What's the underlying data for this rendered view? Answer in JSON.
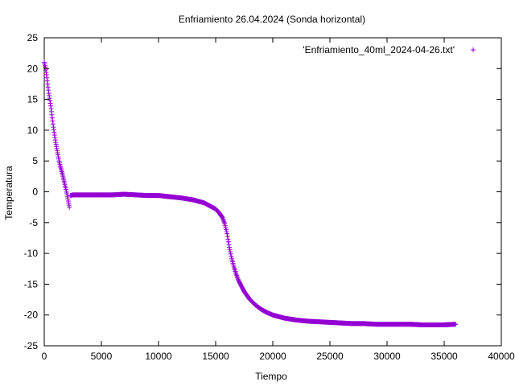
{
  "chart_data": {
    "type": "scatter",
    "title": "Enfriamiento 26.04.2024 (Sonda horizontal)",
    "xlabel": "Tiempo",
    "ylabel": "Temperatura",
    "xlim": [
      0,
      40000
    ],
    "ylim": [
      -25,
      25
    ],
    "x_ticks": [
      0,
      5000,
      10000,
      15000,
      20000,
      25000,
      30000,
      35000,
      40000
    ],
    "y_ticks": [
      25,
      20,
      15,
      10,
      5,
      0,
      -5,
      -10,
      -15,
      -20,
      -25
    ],
    "x_tick_labels": [
      "0",
      "5000",
      "10000",
      "15000",
      "20000",
      "25000",
      "30000",
      "35000",
      "40000"
    ],
    "y_tick_labels": [
      "25",
      "20",
      "15",
      "10",
      "5",
      "0",
      "-5",
      "-10",
      "-15",
      "-20",
      "-25"
    ],
    "grid": false,
    "legend_position": "top-right",
    "marker": "+",
    "series": [
      {
        "name": "'Enfriamiento_40ml_2024-04-26.txt'",
        "color": "#9400d3",
        "x": [
          0,
          100,
          200,
          300,
          400,
          500,
          600,
          700,
          800,
          900,
          1000,
          1100,
          1200,
          1300,
          1400,
          1500,
          1600,
          1700,
          1800,
          1900,
          2000,
          2100,
          2200,
          2300,
          2500,
          3000,
          4000,
          5000,
          6000,
          7000,
          8000,
          9000,
          10000,
          11000,
          12000,
          13000,
          14000,
          14500,
          15000,
          15300,
          15600,
          15800,
          16000,
          16200,
          16400,
          16600,
          16800,
          17000,
          17500,
          18000,
          18500,
          19000,
          19500,
          20000,
          21000,
          22000,
          23000,
          24000,
          25000,
          26000,
          27000,
          28000,
          29000,
          30000,
          31000,
          32000,
          33000,
          34000,
          35000,
          36000
        ],
        "y": [
          21.0,
          20.2,
          19.0,
          17.5,
          16.0,
          14.8,
          13.5,
          12.0,
          10.5,
          9.2,
          8.0,
          7.0,
          6.0,
          5.0,
          4.2,
          3.5,
          2.8,
          2.0,
          1.2,
          0.4,
          -0.5,
          -1.5,
          -2.5,
          -0.6,
          -0.5,
          -0.5,
          -0.5,
          -0.5,
          -0.5,
          -0.4,
          -0.5,
          -0.6,
          -0.6,
          -0.8,
          -1.0,
          -1.3,
          -1.8,
          -2.3,
          -2.8,
          -3.4,
          -4.2,
          -5.2,
          -6.8,
          -9.0,
          -10.8,
          -12.2,
          -13.4,
          -14.4,
          -16.2,
          -17.5,
          -18.4,
          -19.1,
          -19.6,
          -20.0,
          -20.5,
          -20.8,
          -21.0,
          -21.1,
          -21.2,
          -21.3,
          -21.4,
          -21.4,
          -21.5,
          -21.5,
          -21.5,
          -21.5,
          -21.6,
          -21.6,
          -21.6,
          -21.5
        ]
      }
    ]
  }
}
